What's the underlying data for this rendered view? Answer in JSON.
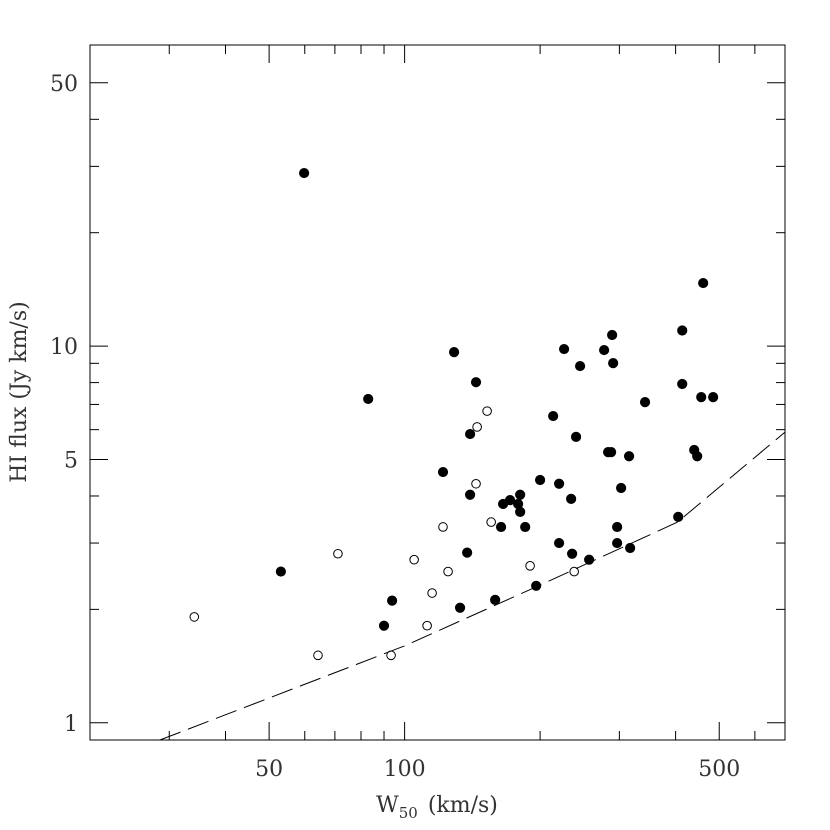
{
  "chart_data": {
    "type": "scatter",
    "xlabel": {
      "main": "W",
      "sub": "50",
      "unit": "(km/s)"
    },
    "ylabel": "HI flux (Jy km/s)",
    "xlog": true,
    "ylog": true,
    "xlim": [
      20,
      700
    ],
    "ylim": [
      0.9,
      63
    ],
    "xticks": [
      50,
      100,
      500
    ],
    "xminorticks": [
      30,
      40,
      60,
      70,
      80,
      90,
      200,
      300,
      400,
      600,
      700
    ],
    "yticks": [
      1,
      5,
      10,
      50
    ],
    "yminorticks": [
      2,
      3,
      4,
      6,
      7,
      8,
      9,
      20,
      30,
      40
    ],
    "color": "#000000",
    "series": [
      {
        "style": "filled",
        "x": [
          59.8,
          53.1,
          83.0,
          90.0,
          93.8,
          128.8,
          144.1,
          121.7,
          139.8,
          139.8,
          137.7,
          132.8,
          158.9,
          163.8,
          165.5,
          171.5,
          178.7,
          180.6,
          180.6,
          185.3,
          196.0,
          200,
          213.8,
          220.4,
          220.4,
          226.1,
          234.4,
          235.6,
          240.4,
          245.4,
          257.0,
          277.5,
          283.2,
          287.6,
          289.1,
          290.6,
          296.6,
          296.6,
          302.7,
          315.3,
          317,
          342.1,
          405.4,
          413.8,
          413.8,
          439.9,
          446.7,
          456.0,
          460.6,
          484.7
        ],
        "values": [
          28.8,
          2.52,
          7.24,
          1.81,
          2.11,
          9.64,
          8.02,
          4.63,
          5.84,
          4.03,
          2.83,
          2.02,
          2.12,
          3.31,
          3.81,
          3.9,
          3.81,
          4.03,
          3.63,
          3.31,
          2.31,
          4.41,
          6.52,
          4.31,
          3.0,
          9.82,
          3.93,
          2.81,
          5.74,
          8.85,
          2.71,
          9.76,
          5.23,
          5.23,
          10.7,
          9.01,
          3.31,
          3.0,
          4.2,
          5.1,
          2.91,
          7.1,
          3.52,
          7.93,
          11.0,
          5.3,
          5.1,
          7.32,
          14.7,
          7.32
        ]
      },
      {
        "style": "open",
        "x": [
          34.1,
          64.2,
          71.1,
          93.3,
          105.0,
          112.2,
          115.1,
          121.7,
          124.9,
          144.1,
          144.9,
          152.5,
          155.7,
          190.0,
          238.1
        ],
        "values": [
          1.91,
          1.51,
          2.81,
          1.51,
          2.71,
          1.81,
          2.21,
          3.31,
          2.52,
          4.31,
          6.1,
          6.72,
          3.41,
          2.61,
          2.52
        ]
      },
      {
        "style": "dashed",
        "x": [
          28.6,
          100,
          200,
          404,
          700
        ],
        "values": [
          0.9,
          1.6,
          2.32,
          3.41,
          5.91
        ]
      }
    ]
  }
}
